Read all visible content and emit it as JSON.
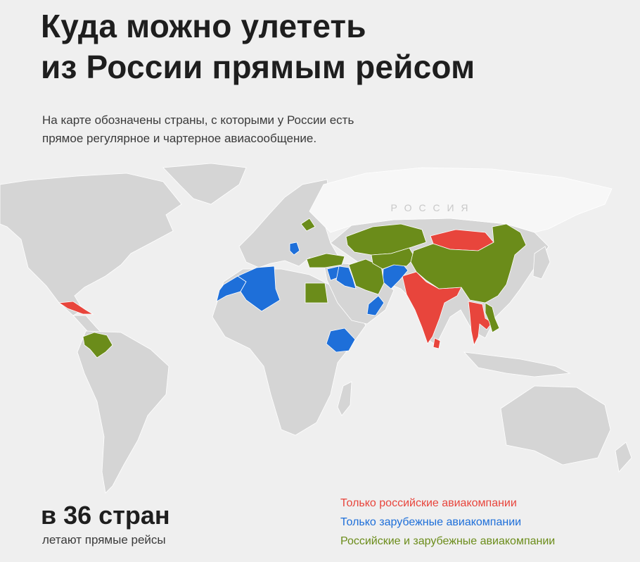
{
  "header": {
    "title_line1": "Куда можно улететь",
    "title_line2": "из России прямым рейсом"
  },
  "subtitle": {
    "line1": "На карте обозначены страны, с которыми у России есть",
    "line2": "прямое регулярное и чартерное авиасообщение."
  },
  "map": {
    "russia_label": "Р О С С И Я",
    "colors": {
      "land": "#d5d5d5",
      "russia": "#f7f7f7",
      "russian_only": "#e8453c",
      "foreign_only": "#1e6fd9",
      "both": "#6b8c1a"
    },
    "country_groups": {
      "russian_only": [
        "Cuba",
        "Mongolia",
        "India",
        "Sri Lanka",
        "Thailand"
      ],
      "foreign_only": [
        "Algeria",
        "Morocco",
        "Serbia",
        "Syria",
        "Iraq",
        "Afghanistan",
        "Oman",
        "Ethiopia"
      ],
      "both": [
        "Venezuela",
        "Belarus",
        "Egypt",
        "Turkey",
        "Iran",
        "Kazakhstan",
        "China",
        "Vietnam"
      ]
    }
  },
  "stats": {
    "number": "в 36 стран",
    "caption": "летают прямые рейсы"
  },
  "legend": {
    "russian_only": "Только российские авиакомпании",
    "foreign_only": "Только зарубежные авиакомпании",
    "both": "Российские и зарубежные авиакомпании"
  }
}
